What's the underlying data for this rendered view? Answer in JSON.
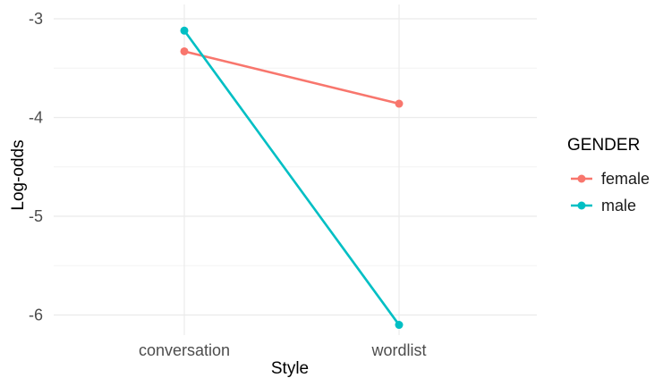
{
  "chart_data": {
    "type": "line",
    "x": [
      "conversation",
      "wordlist"
    ],
    "xlabel": "Style",
    "ylabel": "Log-odds",
    "ylim": [
      -6.3,
      -2.85
    ],
    "yticks": [
      -3,
      -4,
      -5,
      -6
    ],
    "ytick_labels": [
      "-3",
      "-4",
      "-5",
      "-6"
    ],
    "grid": true,
    "legend": {
      "title": "GENDER",
      "placement": "right"
    },
    "series": [
      {
        "name": "female",
        "color": "#F8766D",
        "values": [
          -3.33,
          -3.86
        ]
      },
      {
        "name": "male",
        "color": "#00BFC4",
        "values": [
          -3.12,
          -6.1
        ]
      }
    ]
  }
}
